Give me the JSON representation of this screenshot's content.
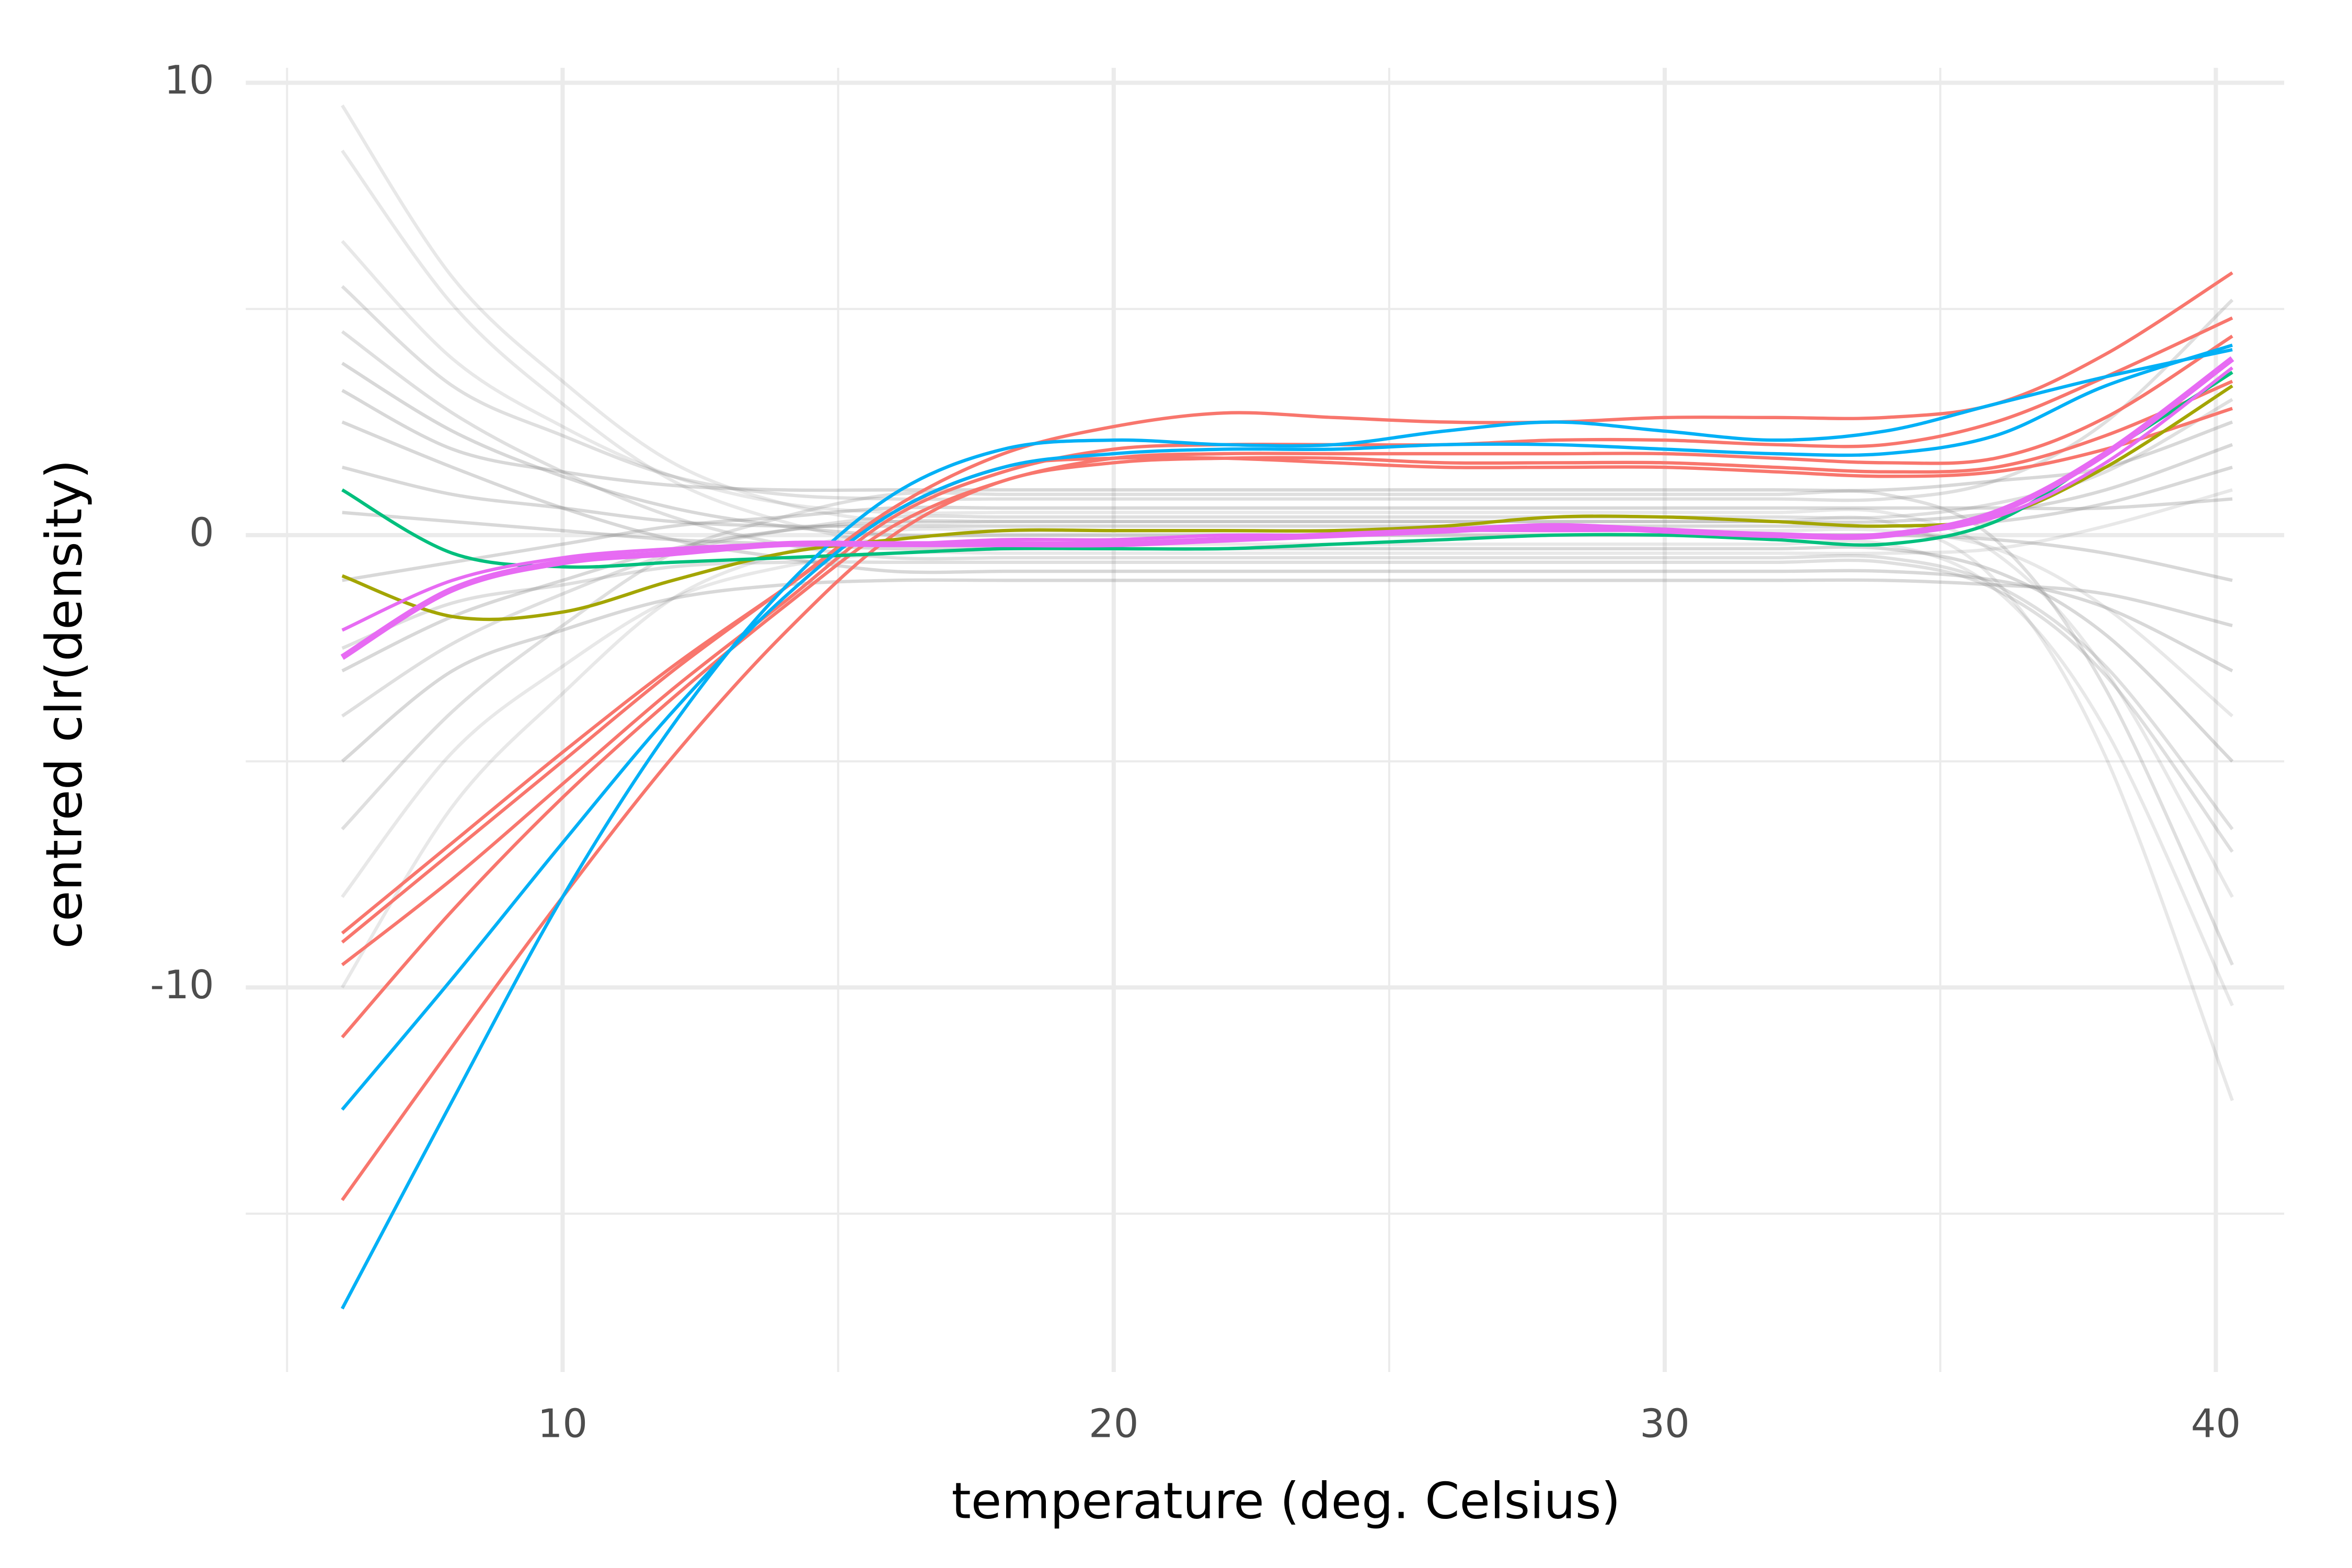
{
  "chart_data": {
    "type": "line",
    "x_label": "temperature (deg. Celsius)",
    "y_label": "centred clr(density)",
    "xlim": [
      4.25,
      41.24
    ],
    "ylim": [
      -18.5,
      10.33
    ],
    "xticks": [
      10,
      20,
      30,
      40
    ],
    "yticks": [
      -10,
      0,
      10
    ],
    "minor_xticks": [
      5,
      15,
      25,
      35
    ],
    "minor_yticks": [
      -15,
      -5,
      5
    ],
    "grid": true,
    "x": [
      6,
      8,
      10,
      12,
      14,
      16,
      18,
      20,
      22,
      24,
      26,
      28,
      30,
      32,
      34,
      36,
      38,
      40.3
    ],
    "series": [
      {
        "color": "rgba(127,127,127,0.18)",
        "values": [
          9.5,
          5.7,
          3.4,
          1.6,
          0.7,
          0.3,
          0.3,
          0.3,
          0.3,
          0.3,
          0.3,
          0.3,
          0.3,
          0.3,
          0.3,
          -1.0,
          -4.9,
          -12.5
        ]
      },
      {
        "color": "rgba(127,127,127,0.18)",
        "values": [
          8.5,
          5.1,
          2.9,
          1.2,
          0.3,
          -0.2,
          -0.2,
          -0.2,
          -0.2,
          -0.2,
          -0.2,
          -0.2,
          -0.2,
          -0.2,
          -0.2,
          -1.2,
          -4.3,
          -10.4
        ]
      },
      {
        "color": "rgba(127,127,127,0.18)",
        "values": [
          6.5,
          3.9,
          2.4,
          1.3,
          0.7,
          0.5,
          0.5,
          0.5,
          0.5,
          0.5,
          0.5,
          0.5,
          0.5,
          0.5,
          0.5,
          -0.4,
          -3.0,
          -8
        ]
      },
      {
        "color": "rgba(127,127,127,0.25)",
        "values": [
          5.5,
          3.3,
          2.2,
          1.3,
          0.9,
          0.8,
          0.8,
          0.8,
          0.8,
          0.8,
          0.8,
          0.8,
          0.8,
          0.8,
          0.8,
          1.2,
          2.5,
          5.2
        ]
      },
      {
        "color": "rgba(127,127,127,0.25)",
        "values": [
          4.5,
          2.7,
          1.4,
          0.4,
          -0.2,
          -0.5,
          -0.5,
          -0.5,
          -0.5,
          -0.5,
          -0.5,
          -0.5,
          -0.5,
          -0.5,
          -0.5,
          -1.1,
          -2.9,
          -6.5
        ]
      },
      {
        "color": "rgba(127,127,127,0.3)",
        "values": [
          3.2,
          1.9,
          1.4,
          1.1,
          1.0,
          1.0,
          1.0,
          1.0,
          1.0,
          1.0,
          1.0,
          1.0,
          1.0,
          1.0,
          1.0,
          1.2,
          1.5,
          2.5
        ]
      },
      {
        "color": "rgba(127,127,127,0.3)",
        "values": [
          2.5,
          1.5,
          0.6,
          -0.1,
          -0.5,
          -0.8,
          -0.8,
          -0.8,
          -0.8,
          -0.8,
          -0.8,
          -0.8,
          -0.8,
          -0.8,
          -0.8,
          -1.0,
          -1.6,
          -3
        ]
      },
      {
        "color": "rgba(127,127,127,0.3)",
        "values": [
          1.5,
          0.9,
          0.6,
          0.3,
          0.2,
          0.2,
          0.2,
          0.2,
          0.2,
          0.2,
          0.2,
          0.2,
          0.2,
          0.2,
          0.2,
          0.3,
          0.7,
          1.5
        ]
      },
      {
        "color": "rgba(127,127,127,0.3)",
        "values": [
          0.5,
          0.3,
          0.1,
          -0.1,
          -0.2,
          -0.3,
          -0.3,
          -0.3,
          -0.3,
          -0.3,
          -0.3,
          -0.3,
          -0.3,
          -0.3,
          -0.3,
          -0.8,
          -2.2,
          -5
        ]
      },
      {
        "color": "rgba(127,127,127,0.3)",
        "values": [
          -1,
          -0.6,
          -0.2,
          0.2,
          0.4,
          0.6,
          0.6,
          0.6,
          0.6,
          0.6,
          0.6,
          0.6,
          0.6,
          0.6,
          0.6,
          0.6,
          0.6,
          0.8
        ]
      },
      {
        "color": "rgba(127,127,127,0.25)",
        "values": [
          -2.5,
          -1.5,
          -1.1,
          -0.7,
          -0.6,
          -0.6,
          -0.6,
          -0.6,
          -0.6,
          -0.6,
          -0.6,
          -0.6,
          -0.6,
          -0.6,
          -0.6,
          -1.2,
          -3.1,
          -7
        ]
      },
      {
        "color": "rgba(127,127,127,0.25)",
        "values": [
          -4,
          -2.4,
          -1.3,
          -0.4,
          0.1,
          0.4,
          0.4,
          0.4,
          0.4,
          0.4,
          0.4,
          0.4,
          0.4,
          0.4,
          0.4,
          0.7,
          1.4,
          3
        ]
      },
      {
        "color": "rgba(127,127,127,0.3)",
        "values": [
          -5,
          -3,
          -2.1,
          -1.4,
          -1.1,
          -1.0,
          -1.0,
          -1.0,
          -1.0,
          -1.0,
          -1.0,
          -1.0,
          -1.0,
          -1.0,
          -1.0,
          -1.1,
          -1.3,
          -2
        ]
      },
      {
        "color": "rgba(127,127,127,0.25)",
        "values": [
          -6.5,
          -3.9,
          -2.0,
          -0.4,
          0.4,
          0.9,
          0.9,
          0.9,
          0.9,
          0.9,
          0.9,
          0.9,
          0.9,
          0.9,
          0.9,
          -0.1,
          -3.4,
          -9.5
        ]
      },
      {
        "color": "rgba(127,127,127,0.18)",
        "values": [
          -8,
          -4.8,
          -2.9,
          -1.4,
          -0.7,
          -0.4,
          -0.4,
          -0.4,
          -0.4,
          -0.4,
          -0.4,
          -0.4,
          -0.4,
          -0.4,
          -0.4,
          -0.3,
          0.2,
          1
        ]
      },
      {
        "color": "rgba(127,127,127,0.18)",
        "values": [
          -10,
          -6,
          -3.5,
          -1.4,
          -0.4,
          0.1,
          0.1,
          0.1,
          0.1,
          0.1,
          0.1,
          0.1,
          0.1,
          0.1,
          0.1,
          -0.3,
          -1.6,
          -4
        ]
      },
      {
        "color": "rgba(127,127,127,0.3)",
        "values": [
          3.8,
          2.3,
          1.3,
          0.6,
          0.2,
          0,
          0,
          0,
          0,
          0,
          0,
          0,
          0,
          0,
          0,
          -0.1,
          -0.4,
          -1
        ]
      },
      {
        "color": "rgba(127,127,127,0.3)",
        "values": [
          -3,
          -1.8,
          -1.0,
          -0.3,
          0.1,
          0.3,
          0.3,
          0.3,
          0.3,
          0.3,
          0.3,
          0.3,
          0.3,
          0.3,
          0.3,
          0.5,
          1.0,
          2
        ]
      },
      {
        "color": "#F8766D",
        "values": [
          -9.0,
          -7.0,
          -5.0,
          -3.0,
          -1.2,
          0.6,
          1.8,
          2.4,
          2.7,
          2.6,
          2.5,
          2.5,
          2.6,
          2.6,
          2.6,
          2.9,
          4.0,
          5.8
        ]
      },
      {
        "color": "#F8766D",
        "values": [
          -9.5,
          -7.6,
          -5.5,
          -3.4,
          -1.5,
          0.4,
          1.4,
          1.9,
          2.0,
          2.0,
          2.0,
          2.1,
          2.1,
          2.0,
          2.0,
          2.5,
          3.5,
          4.8
        ]
      },
      {
        "color": "#F8766D",
        "values": [
          -11.1,
          -8.3,
          -5.8,
          -3.6,
          -1.6,
          0.2,
          1.2,
          1.7,
          1.8,
          1.8,
          1.8,
          1.8,
          1.8,
          1.7,
          1.6,
          1.7,
          2.6,
          4.4
        ]
      },
      {
        "color": "#F8766D",
        "values": [
          -14.7,
          -11.3,
          -8.0,
          -4.9,
          -2.2,
          0.0,
          1.2,
          1.6,
          1.7,
          1.7,
          1.6,
          1.6,
          1.6,
          1.5,
          1.4,
          1.5,
          2.2,
          3.4
        ]
      },
      {
        "color": "#F8766D",
        "values": [
          -8.8,
          -6.8,
          -4.8,
          -2.9,
          -1.2,
          0.5,
          1.5,
          1.7,
          1.7,
          1.6,
          1.5,
          1.5,
          1.5,
          1.4,
          1.3,
          1.4,
          1.9,
          2.8
        ]
      },
      {
        "color": "#A3A500",
        "values": [
          -0.9,
          -1.8,
          -1.7,
          -1.0,
          -0.4,
          -0.1,
          0.1,
          0.1,
          0.1,
          0.1,
          0.2,
          0.4,
          0.4,
          0.3,
          0.2,
          0.4,
          1.5,
          3.3
        ]
      },
      {
        "color": "#00BF7D",
        "values": [
          1.0,
          -0.4,
          -0.7,
          -0.6,
          -0.5,
          -0.4,
          -0.3,
          -0.3,
          -0.3,
          -0.2,
          -0.1,
          0.0,
          0.0,
          -0.1,
          -0.2,
          0.3,
          1.8,
          3.6
        ]
      },
      {
        "color": "#00B0F6",
        "values": [
          -17.1,
          -12.5,
          -8.0,
          -4.2,
          -1.2,
          0.9,
          1.9,
          2.1,
          2.0,
          2.0,
          2.3,
          2.5,
          2.3,
          2.1,
          2.3,
          2.9,
          3.5,
          4.1
        ]
      },
      {
        "color": "#00B0F6",
        "values": [
          -12.7,
          -9.8,
          -6.8,
          -3.9,
          -1.4,
          0.5,
          1.5,
          1.8,
          1.9,
          1.9,
          2.0,
          2.0,
          1.9,
          1.8,
          1.8,
          2.2,
          3.3,
          4.2
        ]
      },
      {
        "color": "#E76BF3",
        "values": [
          -2.1,
          -1.0,
          -0.5,
          -0.3,
          -0.2,
          -0.2,
          -0.1,
          -0.1,
          0.0,
          0.0,
          0.1,
          0.1,
          0.1,
          0.0,
          0.0,
          0.4,
          1.6,
          3.7
        ]
      },
      {
        "color": "#E76BF3",
        "linewidth": 4,
        "values": [
          -2.7,
          -1.2,
          -0.6,
          -0.4,
          -0.2,
          -0.2,
          -0.2,
          -0.2,
          -0.1,
          0.0,
          0.1,
          0.2,
          0.1,
          0.0,
          0.0,
          0.5,
          1.8,
          3.9
        ]
      }
    ]
  }
}
